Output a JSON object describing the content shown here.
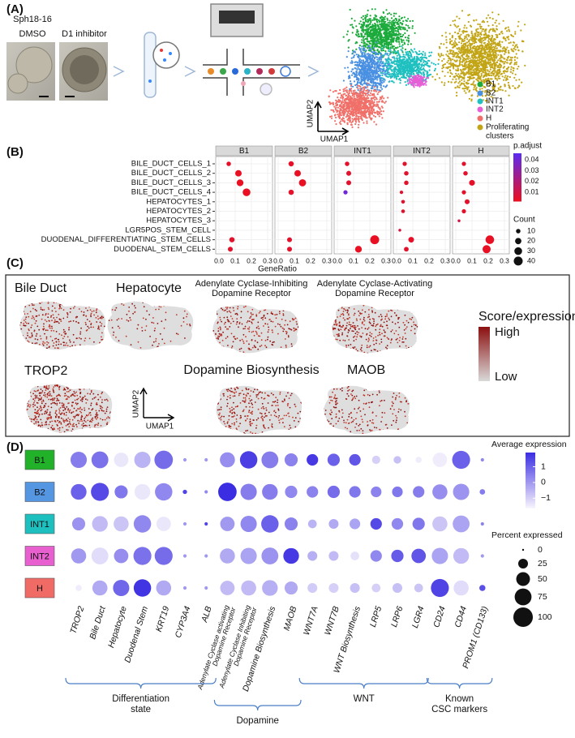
{
  "panel_a": {
    "label": "(A)",
    "sample": "Sph18-16",
    "conditions": [
      "DMSO",
      "D1 inhibitor"
    ],
    "umap_axes": [
      "UMAP2",
      "UMAP1"
    ],
    "clusters": [
      {
        "name": [
          "B1"
        ],
        "color": "#1cab3c"
      },
      {
        "name": [
          "B2"
        ],
        "color": "#4a90e2"
      },
      {
        "name": [
          "INT1"
        ],
        "color": "#1fc0c0"
      },
      {
        "name": [
          "INT2"
        ],
        "color": "#e65fd6"
      },
      {
        "name": [
          "H"
        ],
        "color": "#f07069"
      },
      {
        "name": [
          "Proliferating",
          "clusters"
        ],
        "color": "#c2a516"
      }
    ]
  },
  "panel_b": {
    "label": "(B)",
    "type": "dot",
    "categories": [
      "BILE_DUCT_CELLS_1",
      "BILE_DUCT_CELLS_2",
      "BILE_DUCT_CELLS_3",
      "BILE_DUCT_CELLS_4",
      "HEPATOCYTES_1",
      "HEPATOCYTES_2",
      "HEPATOCYTES_3",
      "LGR5POS_STEM_CELL",
      "DUODENAL_DIFFERENTIATING_STEM_CELLS",
      "DUODENAL_STEM_CELLS"
    ],
    "facets": [
      {
        "name": "B1",
        "gene_ratio": [
          0.06,
          0.12,
          0.13,
          0.17,
          null,
          null,
          null,
          null,
          0.08,
          0.07
        ],
        "count": [
          10,
          21,
          23,
          30,
          null,
          null,
          null,
          null,
          14,
          12
        ],
        "p_adjust": [
          0.004,
          0.003,
          0.003,
          0.003,
          null,
          null,
          null,
          null,
          0.005,
          0.005
        ]
      },
      {
        "name": "B2",
        "gene_ratio": [
          0.08,
          0.12,
          0.15,
          0.08,
          null,
          null,
          null,
          null,
          0.07,
          0.07
        ],
        "count": [
          14,
          21,
          26,
          14,
          null,
          null,
          null,
          null,
          12,
          12
        ],
        "p_adjust": [
          0.004,
          0.003,
          0.003,
          0.005,
          null,
          null,
          null,
          null,
          0.005,
          0.005
        ]
      },
      {
        "name": "INT1",
        "gene_ratio": [
          0.06,
          0.07,
          0.07,
          0.05,
          null,
          null,
          null,
          null,
          0.23,
          0.13
        ],
        "count": [
          10,
          12,
          12,
          9,
          null,
          null,
          null,
          null,
          40,
          23
        ],
        "p_adjust": [
          0.005,
          0.005,
          0.005,
          0.04,
          null,
          null,
          null,
          null,
          0.003,
          0.003
        ]
      },
      {
        "name": "INT2",
        "gene_ratio": [
          0.05,
          0.06,
          0.06,
          0.03,
          0.04,
          0.04,
          null,
          0.02,
          0.09,
          0.06
        ],
        "count": [
          9,
          10,
          10,
          6,
          7,
          7,
          null,
          4,
          16,
          11
        ],
        "p_adjust": [
          0.005,
          0.005,
          0.005,
          0.006,
          0.005,
          0.005,
          null,
          0.008,
          0.004,
          0.005
        ]
      },
      {
        "name": "H",
        "gene_ratio": [
          0.05,
          0.06,
          0.1,
          0.05,
          0.07,
          0.05,
          0.02,
          null,
          0.21,
          0.19
        ],
        "count": [
          9,
          10,
          17,
          9,
          12,
          9,
          4,
          null,
          37,
          33
        ],
        "p_adjust": [
          0.005,
          0.005,
          0.004,
          0.005,
          0.005,
          0.005,
          0.01,
          null,
          0.003,
          0.003
        ]
      }
    ],
    "xlabel": "GeneRatio",
    "xlim": [
      -0.02,
      0.33
    ],
    "xticks": [
      {
        "value": 0,
        "label": "0.0"
      },
      0.1,
      0.2,
      0.3
    ],
    "color_legend": {
      "title": "p.adjust",
      "lim": [
        0.002,
        0.046
      ],
      "ticks": [
        0.04,
        0.03,
        0.02,
        0.01
      ],
      "colors": [
        "#ec0f1e",
        "#5b2cf2"
      ]
    },
    "size_legend": {
      "title": "Count",
      "ticks": [
        10,
        20,
        30,
        40
      ]
    }
  },
  "panel_c": {
    "label": "(C)",
    "titles": [
      [
        "Bile Duct"
      ],
      [
        "Hepatocyte"
      ],
      [
        "Adenylate Cyclase-Inhibiting",
        "Dopamine Receptor"
      ],
      [
        "Adenylate Cyclase-Activating",
        "Dopamine Receptor"
      ],
      [
        "TROP2"
      ],
      [
        "Dopamine Biosynthesis"
      ],
      [
        "MAOB"
      ]
    ],
    "umap_axes": [
      "UMAP2",
      "UMAP1"
    ],
    "legend": {
      "title": "Score/expression",
      "high": "High",
      "low": "Low"
    }
  },
  "panel_d": {
    "label": "(D)",
    "type": "dot",
    "columns": [
      [
        "TROP2"
      ],
      [
        "Bile Duct"
      ],
      [
        "Hepatocyte"
      ],
      [
        "Duodenal Stem"
      ],
      [
        "KRT19"
      ],
      [
        "CYP3A4"
      ],
      [
        "ALB"
      ],
      [
        "Adenylate Cyclase activating",
        "Dopamine Receptor"
      ],
      [
        "Adenylate Cyclase Inhibiting",
        "Dopamine Receptor"
      ],
      [
        "Dopamine Biosynthesis"
      ],
      [
        "MAOB"
      ],
      [
        "WNT7A"
      ],
      [
        "WNT7B"
      ],
      [
        "WNT Biosynthesis"
      ],
      [
        "LRP5"
      ],
      [
        "LRP6"
      ],
      [
        "LGR4"
      ],
      [
        "CD24"
      ],
      [
        "CD44"
      ],
      [
        "PROM1 (CD133)"
      ]
    ],
    "rows": [
      {
        "name": "B1",
        "color": "#22b22a",
        "avg_expression": [
          0.5,
          0.7,
          -1.4,
          -0.5,
          0.8,
          0,
          0,
          0.2,
          1.6,
          0.5,
          0.4,
          1.7,
          1.0,
          1.2,
          -1.0,
          -0.7,
          -1.5,
          -1.5,
          1.0,
          0.3
        ],
        "pct_expressed": [
          70,
          75,
          55,
          70,
          90,
          3,
          3,
          60,
          80,
          75,
          45,
          35,
          40,
          35,
          18,
          15,
          10,
          55,
          85,
          3
        ]
      },
      {
        "name": "B2",
        "color": "#5596e3",
        "avg_expression": [
          1.0,
          1.4,
          0.6,
          -1.4,
          0.3,
          1.5,
          0.3,
          1.9,
          0.5,
          0.5,
          0.3,
          0.4,
          0.8,
          0.6,
          0.4,
          0.6,
          0.5,
          0.2,
          0.1,
          0.5
        ],
        "pct_expressed": [
          65,
          85,
          45,
          65,
          80,
          5,
          3,
          90,
          70,
          65,
          40,
          35,
          40,
          35,
          30,
          30,
          35,
          60,
          70,
          8
        ]
      },
      {
        "name": "INT1",
        "color": "#1dbfbf",
        "avg_expression": [
          0.1,
          -0.6,
          -0.8,
          0.3,
          -1.4,
          0,
          1.5,
          0.0,
          0.3,
          1.0,
          0.4,
          -0.5,
          -0.3,
          -0.2,
          1.4,
          0.3,
          0.6,
          -0.8,
          -0.2,
          0.4
        ],
        "pct_expressed": [
          45,
          65,
          60,
          80,
          55,
          3,
          3,
          55,
          70,
          80,
          45,
          20,
          25,
          30,
          35,
          35,
          40,
          60,
          75,
          3
        ]
      },
      {
        "name": "INT2",
        "color": "#e85fcf",
        "avg_expression": [
          0,
          -1.2,
          0.2,
          0.7,
          0.8,
          0,
          0,
          -0.3,
          -0.2,
          0.1,
          1.7,
          -0.4,
          -0.6,
          -1.3,
          0.3,
          1.1,
          1.2,
          -0.2,
          -0.6,
          0
        ],
        "pct_expressed": [
          60,
          75,
          55,
          85,
          85,
          3,
          3,
          60,
          70,
          75,
          65,
          25,
          25,
          20,
          35,
          40,
          55,
          70,
          65,
          3
        ]
      },
      {
        "name": "H",
        "color": "#f06a66",
        "avg_expression": [
          -1.5,
          -0.3,
          0.9,
          1.8,
          -0.3,
          0,
          0,
          -0.6,
          -0.6,
          -0.4,
          -0.3,
          -0.9,
          -1.0,
          -0.7,
          -1.0,
          -0.7,
          -0.8,
          1.5,
          -1.2,
          1.3
        ],
        "pct_expressed": [
          10,
          60,
          70,
          80,
          60,
          3,
          3,
          55,
          60,
          65,
          45,
          25,
          25,
          25,
          20,
          25,
          20,
          85,
          60,
          10
        ]
      }
    ],
    "groups": [
      {
        "label": [
          "Differentiation",
          "state"
        ],
        "columns": [
          0,
          6
        ]
      },
      {
        "label": [
          "Dopamine"
        ],
        "columns": [
          7,
          10
        ]
      },
      {
        "label": [
          "WNT"
        ],
        "columns": [
          11,
          16
        ]
      },
      {
        "label": [
          "Known",
          "CSC markers"
        ],
        "columns": [
          17,
          19
        ]
      }
    ],
    "color_legend": {
      "title": "Average expression",
      "lim": [
        -1.6,
        1.9
      ],
      "ticks": [
        1,
        0,
        {
          "value": -1,
          "label": "−1"
        }
      ],
      "colors": [
        "#f6f2fc",
        "#3b2ee2"
      ]
    },
    "size_legend": {
      "title": "Percent expressed",
      "ticks": [
        0,
        25,
        50,
        75,
        100
      ]
    }
  }
}
